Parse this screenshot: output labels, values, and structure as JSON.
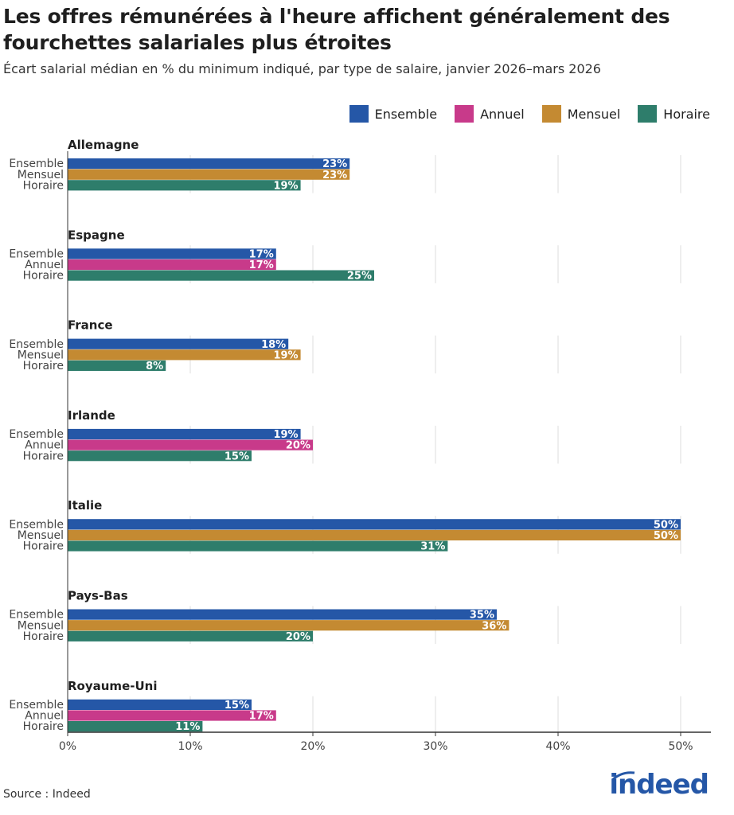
{
  "header": {
    "title": "Les offres rémunérées à l'heure affichent généralement des fourchettes salariales plus étroites",
    "subtitle": "Écart salarial médian en % du minimum indiqué, par type de salaire, janvier 2026–mars 2026"
  },
  "legend": [
    {
      "name": "Ensemble",
      "color": "#2557a7"
    },
    {
      "name": "Annuel",
      "color": "#c83a8a"
    },
    {
      "name": "Mensuel",
      "color": "#c48a32"
    },
    {
      "name": "Horaire",
      "color": "#2e7d6b"
    }
  ],
  "footer": {
    "source": "Source : Indeed",
    "logo": "indeed"
  },
  "chart_data": {
    "type": "bar",
    "orientation": "horizontal",
    "xlim": [
      0,
      52
    ],
    "xticks": [
      0,
      10,
      20,
      30,
      40,
      50
    ],
    "xtick_labels": [
      "0%",
      "10%",
      "20%",
      "30%",
      "40%",
      "50%"
    ],
    "grid": true,
    "legend_position": "top-right",
    "groups": [
      {
        "country": "Allemagne",
        "bars": [
          {
            "series": "Ensemble",
            "value": 23,
            "label": "23%"
          },
          {
            "series": "Mensuel",
            "value": 23,
            "label": "23%"
          },
          {
            "series": "Horaire",
            "value": 19,
            "label": "19%"
          }
        ]
      },
      {
        "country": "Espagne",
        "bars": [
          {
            "series": "Ensemble",
            "value": 17,
            "label": "17%"
          },
          {
            "series": "Annuel",
            "value": 17,
            "label": "17%"
          },
          {
            "series": "Horaire",
            "value": 25,
            "label": "25%"
          }
        ]
      },
      {
        "country": "France",
        "bars": [
          {
            "series": "Ensemble",
            "value": 18,
            "label": "18%"
          },
          {
            "series": "Mensuel",
            "value": 19,
            "label": "19%"
          },
          {
            "series": "Horaire",
            "value": 8,
            "label": "8%"
          }
        ]
      },
      {
        "country": "Irlande",
        "bars": [
          {
            "series": "Ensemble",
            "value": 19,
            "label": "19%"
          },
          {
            "series": "Annuel",
            "value": 20,
            "label": "20%"
          },
          {
            "series": "Horaire",
            "value": 15,
            "label": "15%"
          }
        ]
      },
      {
        "country": "Italie",
        "bars": [
          {
            "series": "Ensemble",
            "value": 50,
            "label": "50%"
          },
          {
            "series": "Mensuel",
            "value": 50,
            "label": "50%"
          },
          {
            "series": "Horaire",
            "value": 31,
            "label": "31%"
          }
        ]
      },
      {
        "country": "Pays-Bas",
        "bars": [
          {
            "series": "Ensemble",
            "value": 35,
            "label": "35%"
          },
          {
            "series": "Mensuel",
            "value": 36,
            "label": "36%"
          },
          {
            "series": "Horaire",
            "value": 20,
            "label": "20%"
          }
        ]
      },
      {
        "country": "Royaume-Uni",
        "bars": [
          {
            "series": "Ensemble",
            "value": 15,
            "label": "15%"
          },
          {
            "series": "Annuel",
            "value": 17,
            "label": "17%"
          },
          {
            "series": "Horaire",
            "value": 11,
            "label": "11%"
          }
        ]
      }
    ]
  }
}
